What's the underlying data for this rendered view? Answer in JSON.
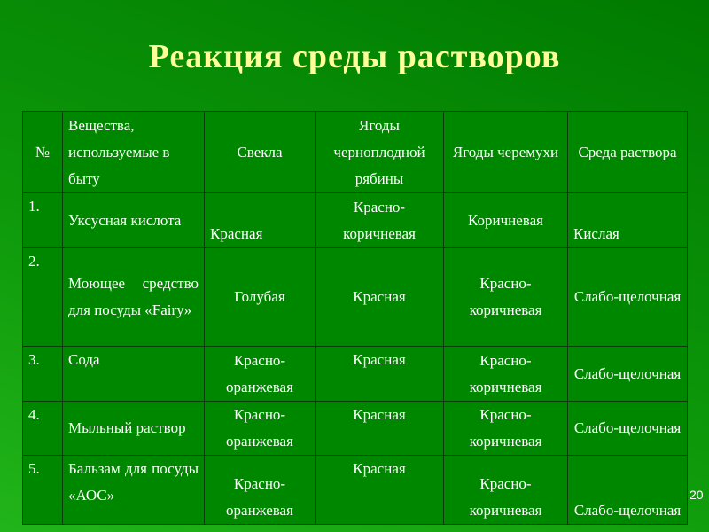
{
  "title": "Реакция среды растворов",
  "table": {
    "headers": [
      "№",
      "Вещества, используемые в быту",
      "Свекла",
      "Ягоды черноплодной рябины",
      "Ягоды черемухи",
      "Среда раствора"
    ],
    "rows": [
      [
        "1.",
        "Уксусная кислота",
        "Красная",
        "Красно-коричневая",
        "Коричневая",
        "Кислая"
      ],
      [
        "2.",
        "Моющее средство для посуды «Fairy»",
        "Голубая",
        "Красная",
        "Красно-коричневая",
        "Слабо-щелочная"
      ],
      [
        "3.",
        "Сода",
        "Красно-оранжевая",
        "Красная",
        "Красно-коричневая",
        "Слабо-щелочная"
      ],
      [
        "4.",
        "Мыльный раствор",
        "Красно-оранжевая",
        "Красная",
        "Красно-коричневая",
        "Слабо-щелочная"
      ],
      [
        "5.",
        "Бальзам для посуды «АОС»",
        "Красно-оранжевая",
        "Красная",
        "Красно-коричневая",
        "Слабо-щелочная"
      ]
    ]
  },
  "slide_number": "20"
}
